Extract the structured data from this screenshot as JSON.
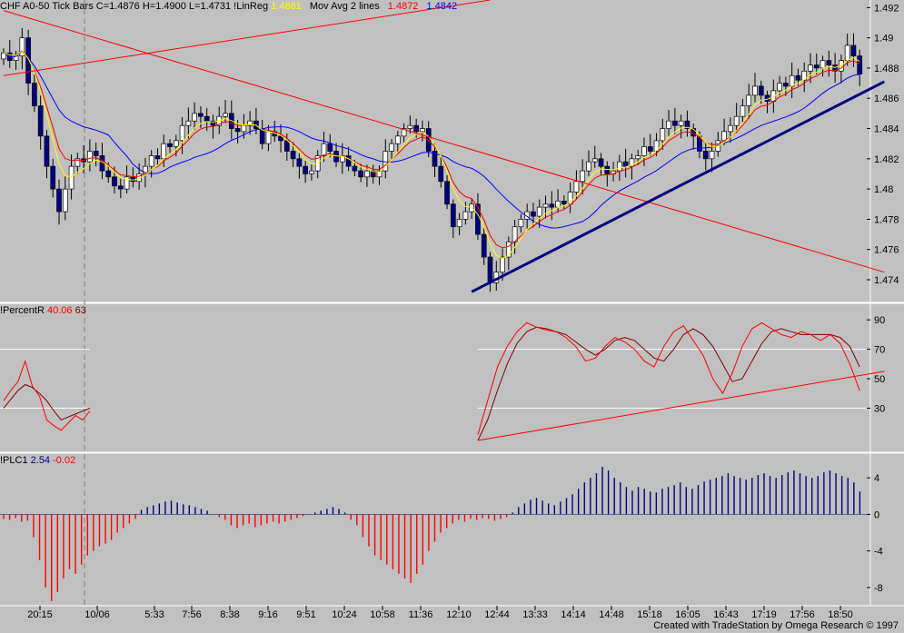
{
  "header": {
    "symbol_line": "CHF A0-50 Tick Bars",
    "close": "C=1.4876",
    "high": "H=1.4900",
    "low": "L=1.4731",
    "linreg_label": "!LinReg",
    "linreg_value": "1.4881",
    "movavg_label": "Mov Avg 2 lines",
    "movavg_value1": "1.4872",
    "movavg_value2": "1.4842"
  },
  "indicators": {
    "percentr_label": "!PercentR",
    "percentr_value1": "40.06",
    "percentr_value2": "63",
    "plc_label": "!PLC1",
    "plc_value1": "2.54",
    "plc_value2": "-0.02"
  },
  "footer": {
    "credit": "Created with TradeStation by Omega Research © 1997"
  },
  "colors": {
    "background": "#c0c0c0",
    "up_bar": "#ffffff",
    "down_bar": "#000080",
    "linreg": "#ffff00",
    "ma_fast": "#ff0000",
    "ma_slow": "#0000ff",
    "trendline": "#ff0000",
    "support": "#000080",
    "hist_pos": "#000080",
    "hist_neg": "#ff0000"
  },
  "chart_data": [
    {
      "type": "candlestick",
      "panel": "price",
      "ylim": [
        1.4725,
        1.4925
      ],
      "y_ticks": [
        "1.492",
        "1.49",
        "1.488",
        "1.486",
        "1.484",
        "1.482",
        "1.48",
        "1.478",
        "1.476",
        "1.474"
      ],
      "x_ticks": [
        "20:15",
        "10/06",
        "5:33",
        "7:56",
        "8:38",
        "9:16",
        "9:51",
        "10:24",
        "10:58",
        "11:36",
        "12:10",
        "12:44",
        "13:33",
        "14:14",
        "14:48",
        "15:18",
        "16:05",
        "16:43",
        "17:19",
        "17:56",
        "18:50"
      ],
      "close": [
        1.489,
        1.4885,
        1.4888,
        1.49,
        1.487,
        1.4855,
        1.4835,
        1.4815,
        1.48,
        1.4785,
        1.48,
        1.4815,
        1.482,
        1.4818,
        1.4825,
        1.4822,
        1.4812,
        1.4808,
        1.4802,
        1.48,
        1.4808,
        1.4805,
        1.481,
        1.4815,
        1.4822,
        1.482,
        1.483,
        1.4828,
        1.4832,
        1.4842,
        1.4845,
        1.485,
        1.4848,
        1.4845,
        1.4842,
        1.4848,
        1.485,
        1.484,
        1.4838,
        1.4842,
        1.4845,
        1.484,
        1.483,
        1.4838,
        1.4835,
        1.4832,
        1.4825,
        1.482,
        1.4815,
        1.481,
        1.4812,
        1.4822,
        1.483,
        1.4825,
        1.4818,
        1.4822,
        1.4815,
        1.4812,
        1.4808,
        1.4812,
        1.4808,
        1.4812,
        1.4825,
        1.483,
        1.4835,
        1.484,
        1.4842,
        1.4838,
        1.484,
        1.4825,
        1.4815,
        1.4805,
        1.479,
        1.4775,
        1.478,
        1.4785,
        1.479,
        1.477,
        1.4755,
        1.4738,
        1.4745,
        1.4755,
        1.4765,
        1.4775,
        1.478,
        1.4785,
        1.4782,
        1.4788,
        1.479,
        1.4788,
        1.4792,
        1.479,
        1.4798,
        1.4805,
        1.4812,
        1.4818,
        1.482,
        1.4815,
        1.481,
        1.4812,
        1.4818,
        1.4815,
        1.482,
        1.4822,
        1.4828,
        1.4825,
        1.4832,
        1.484,
        1.4845,
        1.4842,
        1.4845,
        1.484,
        1.4835,
        1.4825,
        1.482,
        1.4825,
        1.4832,
        1.4838,
        1.4842,
        1.4848,
        1.4855,
        1.4862,
        1.4868,
        1.4862,
        1.4858,
        1.4865,
        1.487,
        1.4868,
        1.4875,
        1.4872,
        1.4878,
        1.4882,
        1.488,
        1.4885,
        1.4882,
        1.4878,
        1.4885,
        1.4895,
        1.4888,
        1.4876
      ],
      "trendlines": [
        {
          "from": [
            0,
            1.4875
          ],
          "to": [
            79,
            1.4925
          ]
        },
        {
          "from": [
            0,
            1.4918
          ],
          "to": [
            143,
            1.4745
          ]
        },
        {
          "from": [
            76,
            1.4732
          ],
          "to": [
            143,
            1.4871
          ]
        }
      ]
    },
    {
      "type": "line",
      "panel": "percentr",
      "ylim": [
        0,
        100
      ],
      "y_ticks": [
        "90",
        "70",
        "50",
        "30"
      ],
      "levels": [
        70,
        30
      ],
      "gap": [
        14,
        77
      ],
      "series": [
        {
          "values": [
            35,
            42,
            48,
            62,
            45,
            38,
            22,
            18,
            15,
            20,
            25,
            22,
            28
          ]
        },
        {
          "values": [
            30,
            36,
            42,
            46,
            44,
            40,
            35,
            28,
            22,
            24,
            26,
            28,
            30
          ]
        },
        {
          "values": [
            12,
            35,
            58,
            72,
            82,
            88,
            85,
            83,
            82,
            78,
            72,
            62,
            64,
            72,
            78,
            75,
            70,
            62,
            58,
            72,
            82,
            86,
            76,
            66,
            50,
            40,
            54,
            72,
            84,
            88,
            84,
            80,
            78,
            82,
            80,
            76,
            80,
            74,
            60,
            42
          ]
        },
        {
          "values": [
            8,
            22,
            42,
            60,
            74,
            82,
            85,
            84,
            82,
            80,
            75,
            70,
            66,
            70,
            76,
            78,
            76,
            70,
            64,
            62,
            70,
            80,
            84,
            80,
            72,
            60,
            48,
            50,
            62,
            74,
            82,
            84,
            82,
            80,
            80,
            80,
            80,
            78,
            72,
            58
          ]
        }
      ],
      "trendline": {
        "from": [
          77,
          8
        ],
        "to": [
          143,
          55
        ]
      }
    },
    {
      "type": "bar",
      "panel": "plc1",
      "ylim": [
        -10,
        6.5
      ],
      "y_ticks": [
        "4",
        "0",
        "-4",
        "-8"
      ],
      "values": [
        -0.5,
        -0.6,
        -0.4,
        -0.8,
        -0.7,
        -2.5,
        -5.0,
        -8.0,
        -9.5,
        -8.5,
        -7.0,
        -6.0,
        -6.5,
        -5.5,
        -4.5,
        -4.0,
        -3.5,
        -3.2,
        -2.8,
        -2.0,
        -1.5,
        -1.0,
        -0.5,
        0.5,
        0.8,
        1.0,
        1.2,
        1.4,
        1.5,
        1.3,
        1.1,
        1.0,
        0.8,
        0.6,
        0.4,
        0.0,
        -0.3,
        -0.6,
        -1.2,
        -1.5,
        -1.2,
        -1.0,
        -1.4,
        -1.2,
        -1.0,
        -0.8,
        -1.0,
        -0.8,
        -0.6,
        -0.4,
        -0.2,
        0.0,
        0.2,
        0.4,
        0.6,
        0.8,
        0.6,
        0.2,
        -0.6,
        -1.2,
        -2.5,
        -3.5,
        -4.5,
        -5.0,
        -5.5,
        -6.0,
        -6.5,
        -7.0,
        -7.5,
        -6.5,
        -5.5,
        -4.0,
        -3.0,
        -2.0,
        -1.5,
        -1.0,
        -0.6,
        -0.8,
        -0.5,
        -0.6,
        -0.4,
        -0.5,
        -0.7,
        -0.5,
        -0.3,
        0.2,
        0.8,
        1.2,
        1.6,
        1.8,
        1.5,
        1.2,
        1.0,
        1.4,
        1.8,
        2.2,
        2.8,
        3.5,
        4.0,
        4.5,
        5.2,
        4.8,
        4.0,
        3.5,
        3.0,
        2.6,
        3.0,
        2.8,
        2.5,
        2.4,
        2.8,
        3.0,
        3.2,
        3.5,
        3.0,
        2.8,
        3.2,
        3.6,
        3.8,
        4.0,
        4.2,
        4.5,
        4.2,
        4.0,
        3.8,
        4.0,
        4.3,
        4.5,
        4.2,
        4.0,
        4.3,
        4.6,
        4.8,
        4.5,
        4.2,
        4.0,
        4.2,
        4.6,
        4.8,
        4.5,
        4.2,
        4.0,
        3.5,
        2.5
      ]
    }
  ]
}
